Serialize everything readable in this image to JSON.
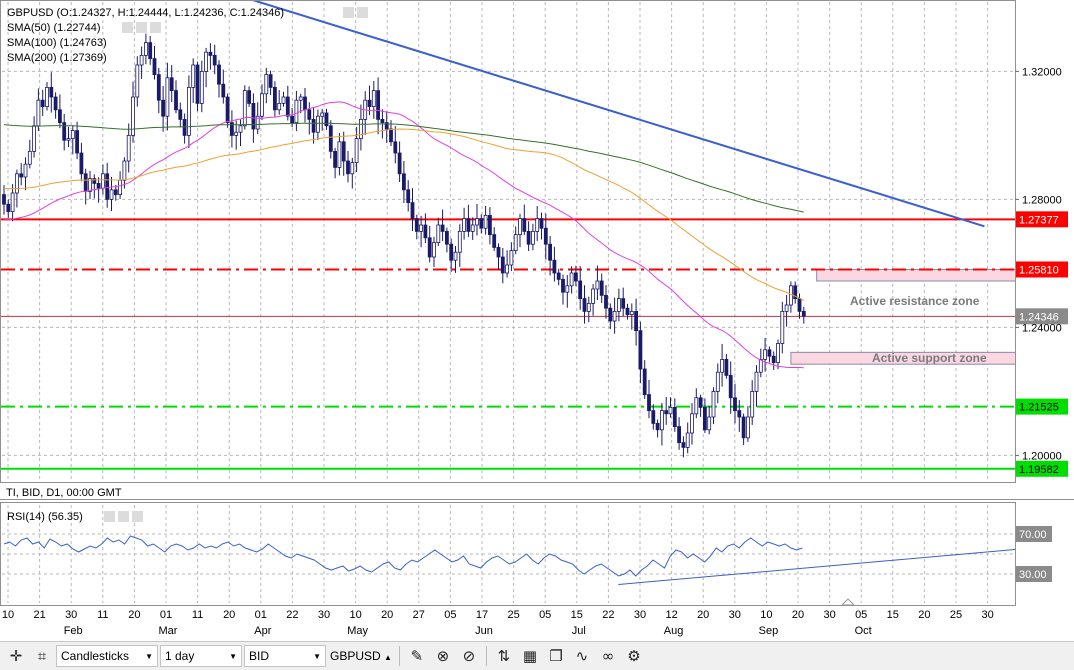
{
  "legend": {
    "ohlc": "GBPUSD (O:1.24327, H:1.24444, L:1.24236, C:1.24346)",
    "sma50": "SMA(50) (1.22744)",
    "sma100": "SMA(100) (1.24763)",
    "sma200": "SMA(200) (1.27369)"
  },
  "info_line": "TI, BID, D1, 00:00 GMT",
  "rsi_legend": "RSI(14) (56.35)",
  "annotations": {
    "resistance": "Active resistance  zone",
    "support": "Active support zone"
  },
  "toolbar": {
    "chart_type": "Candlesticks",
    "timeframe": "1 day",
    "price_type": "BID",
    "symbol": "GBPUSD"
  },
  "colors": {
    "sma50": "#e040e0",
    "sma100": "#f0a030",
    "sma200": "#3a6e2a",
    "trendline": "#3a5fd0",
    "red_level": "#ff0000",
    "green_level": "#00dd00",
    "rsi_line": "#3a5fd0",
    "zone_fill": "#fbd7e2"
  },
  "chart_data": [
    {
      "type": "candlestick",
      "symbol": "GBPUSD",
      "ylim": [
        1.192,
        1.342
      ],
      "y_ticks": [
        1.32,
        1.28,
        1.24,
        1.2
      ],
      "y_tick_labels": [
        "1.32000",
        "1.28000",
        "1.24000",
        "1.20000"
      ],
      "price_levels": [
        {
          "label": "1.27377",
          "value": 1.27377,
          "color": "#ff0000",
          "style": "solid"
        },
        {
          "label": "1.25810",
          "value": 1.2581,
          "color": "#ff0000",
          "style": "dashdot"
        },
        {
          "label": "1.24346",
          "value": 1.24346,
          "color": "#888888",
          "style": "current"
        },
        {
          "label": "1.21525",
          "value": 1.21525,
          "color": "#00dd00",
          "style": "dashdot"
        },
        {
          "label": "1.19582",
          "value": 1.19582,
          "color": "#00dd00",
          "style": "solid"
        }
      ],
      "zones": [
        {
          "name": "Active resistance  zone",
          "from": 1.2545,
          "to": 1.2581,
          "x_from": 189,
          "x_to": 220
        },
        {
          "name": "Active support zone",
          "from": 1.2285,
          "to": 1.2322,
          "x_from": 183,
          "x_to": 220
        }
      ],
      "trendline": {
        "from": [
          47,
          1.3468
        ],
        "to": [
          228,
          1.2716
        ]
      },
      "x_tick_labels": [
        "10",
        "21",
        "30",
        "11",
        "20",
        "01",
        "11",
        "20",
        "01",
        "22",
        "30",
        "10",
        "20",
        "27",
        "05",
        "17",
        "25",
        "05",
        "15",
        "22",
        "30",
        "12",
        "20",
        "30",
        "10",
        "20",
        "30",
        "05",
        "15",
        "20",
        "25",
        "30"
      ],
      "month_labels": [
        "Feb",
        "Mar",
        "Apr",
        "May",
        "Jun",
        "Jul",
        "Aug",
        "Sep",
        "Oct"
      ],
      "x_units": "trading-day index (0 = first visible bar)",
      "close": [
        1.2785,
        1.2762,
        1.282,
        1.288,
        1.287,
        1.291,
        1.295,
        1.303,
        1.311,
        1.309,
        1.315,
        1.312,
        1.308,
        1.304,
        1.2985,
        1.299,
        1.3015,
        1.2945,
        1.288,
        1.2825,
        1.2865,
        1.285,
        1.2835,
        1.288,
        1.28,
        1.283,
        1.2815,
        1.286,
        1.292,
        1.3,
        1.312,
        1.322,
        1.325,
        1.329,
        1.324,
        1.319,
        1.311,
        1.306,
        1.318,
        1.314,
        1.308,
        1.305,
        1.3,
        1.315,
        1.322,
        1.31,
        1.32,
        1.326,
        1.325,
        1.322,
        1.316,
        1.312,
        1.304,
        1.3,
        1.301,
        1.303,
        1.314,
        1.31,
        1.302,
        1.306,
        1.313,
        1.319,
        1.315,
        1.308,
        1.31,
        1.312,
        1.306,
        1.304,
        1.311,
        1.312,
        1.308,
        1.305,
        1.301,
        1.306,
        1.307,
        1.303,
        1.295,
        1.29,
        1.298,
        1.292,
        1.288,
        1.2915,
        1.299,
        1.305,
        1.311,
        1.309,
        1.314,
        1.305,
        1.304,
        1.302,
        1.298,
        1.2945,
        1.288,
        1.283,
        1.279,
        1.274,
        1.27,
        1.272,
        1.268,
        1.262,
        1.2665,
        1.272,
        1.27,
        1.266,
        1.261,
        1.2635,
        1.27,
        1.274,
        1.27,
        1.272,
        1.274,
        1.271,
        1.275,
        1.269,
        1.265,
        1.262,
        1.257,
        1.2595,
        1.264,
        1.269,
        1.274,
        1.27,
        1.266,
        1.27,
        1.274,
        1.271,
        1.266,
        1.261,
        1.257,
        1.255,
        1.251,
        1.253,
        1.257,
        1.2545,
        1.249,
        1.245,
        1.2475,
        1.252,
        1.2545,
        1.25,
        1.246,
        1.242,
        1.245,
        1.249,
        1.246,
        1.244,
        1.245,
        1.239,
        1.227,
        1.219,
        1.214,
        1.21,
        1.208,
        1.214,
        1.213,
        1.215,
        1.209,
        1.204,
        1.2025,
        1.207,
        1.213,
        1.218,
        1.215,
        1.208,
        1.212,
        1.22,
        1.226,
        1.23,
        1.225,
        1.218,
        1.214,
        1.212,
        1.2055,
        1.212,
        1.22,
        1.226,
        1.23,
        1.233,
        1.231,
        1.229,
        1.235,
        1.245,
        1.247,
        1.253,
        1.249,
        1.245,
        1.2435
      ]
    },
    {
      "type": "line",
      "name": "RSI(14)",
      "ylim": [
        0,
        100
      ],
      "levels": [
        {
          "label": "70.00",
          "value": 70
        },
        {
          "label": "30.00",
          "value": 30
        }
      ],
      "trendline": {
        "from": [
          0.555,
          19.5
        ],
        "to": [
          1.0,
          54.5
        ]
      },
      "values": [
        60,
        62,
        58,
        64,
        66,
        60,
        62,
        56,
        65,
        62,
        58,
        60,
        55,
        52,
        55,
        58,
        56,
        60,
        66,
        62,
        64,
        60,
        68,
        66,
        64,
        58,
        60,
        56,
        52,
        58,
        60,
        58,
        54,
        56,
        60,
        56,
        58,
        56,
        60,
        62,
        58,
        60,
        56,
        54,
        52,
        55,
        60,
        56,
        52,
        48,
        46,
        50,
        48,
        46,
        44,
        40,
        36,
        34,
        36,
        38,
        33,
        35,
        38,
        34,
        32,
        36,
        40,
        42,
        36,
        34,
        40,
        44,
        42,
        46,
        50,
        54,
        50,
        46,
        42,
        44,
        48,
        40,
        38,
        36,
        42,
        46,
        48,
        44,
        40,
        42,
        46,
        50,
        44,
        40,
        46,
        50,
        48,
        44,
        42,
        40,
        34,
        30,
        34,
        38,
        40,
        36,
        32,
        28,
        30,
        34,
        28,
        34,
        38,
        44,
        40,
        36,
        48,
        54,
        52,
        46,
        50,
        46,
        42,
        48,
        56,
        52,
        58,
        60,
        56,
        62,
        66,
        62,
        58,
        62,
        60,
        58,
        60,
        56,
        54,
        56
      ]
    }
  ]
}
